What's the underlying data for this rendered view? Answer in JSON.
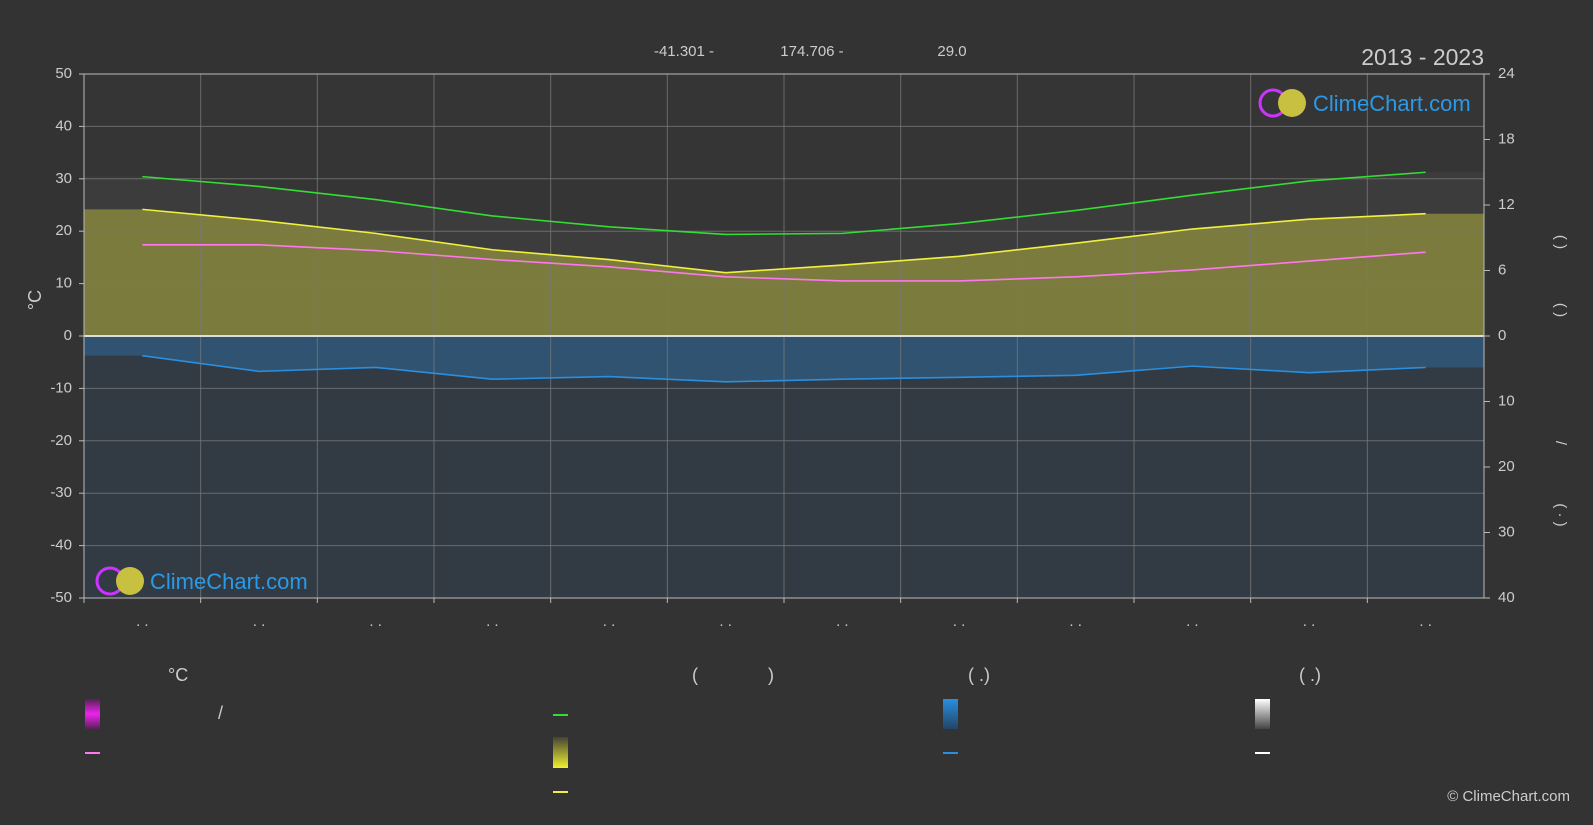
{
  "chart_data": {
    "type": "line",
    "title": "2013 - 2023",
    "header": [
      "-41.301 -",
      "174.706 -",
      "29.0"
    ],
    "ylabel": "°C",
    "categories": [
      ". .",
      ". .",
      ". .",
      ". .",
      ". .",
      ". .",
      ". .",
      ". .",
      ". .",
      ". .",
      ". .",
      ". ."
    ],
    "ylim": [
      -50,
      50
    ],
    "yticks": [
      50,
      40,
      30,
      20,
      10,
      0,
      -10,
      -20,
      -30,
      -40,
      -50
    ],
    "y2lim": [
      0,
      24
    ],
    "y2ticks": [
      0,
      6,
      12,
      18,
      24
    ],
    "y3lim": [
      0,
      40
    ],
    "y3ticks": [
      10,
      20,
      30,
      40
    ],
    "y2label_parts": [
      "(  )",
      "(  )",
      "/",
      "( · )"
    ],
    "grid": true,
    "series": [
      {
        "color": "#33dd33",
        "axis": "y2",
        "values": [
          14.6,
          13.7,
          12.5,
          11.0,
          10.0,
          9.3,
          9.4,
          10.3,
          11.5,
          12.9,
          14.2,
          15.0
        ]
      },
      {
        "color": "#f0f040",
        "axis": "y2",
        "values": [
          11.6,
          10.6,
          9.4,
          7.9,
          7.0,
          5.8,
          6.5,
          7.3,
          8.5,
          9.8,
          10.7,
          11.2
        ]
      },
      {
        "color": "#ff77ee",
        "values": [
          17.4,
          17.4,
          16.3,
          14.6,
          13.2,
          11.3,
          10.5,
          10.5,
          11.3,
          12.6,
          14.3,
          16.0
        ]
      },
      {
        "color": "#2a8fe0",
        "axis": "y3",
        "values": [
          3.0,
          5.4,
          4.8,
          6.6,
          6.2,
          7.0,
          6.6,
          6.3,
          6.0,
          4.6,
          5.6,
          4.8
        ]
      }
    ],
    "legend_texts": [
      "°C",
      "(",
      ")",
      "(   .)",
      "(   .)",
      "/"
    ],
    "logo": "ClimeChart.com",
    "copyright": "© ClimeChart.com"
  }
}
